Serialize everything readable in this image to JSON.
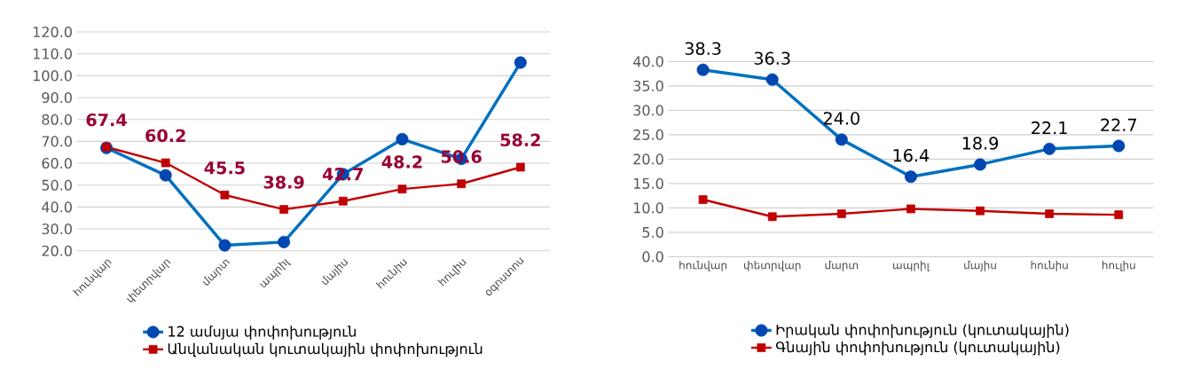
{
  "chart_data": [
    {
      "type": "line",
      "categories": [
        "հունվար",
        "փետրվար",
        "մարտ",
        "ապրիլ",
        "մայիս",
        "հունիս",
        "հուլիս",
        "օգոստոս"
      ],
      "ylim": [
        20,
        120
      ],
      "yticks": [
        {
          "value": 20,
          "label": "20.0"
        },
        {
          "value": 30,
          "label": "30.0"
        },
        {
          "value": 40,
          "label": "40.0"
        },
        {
          "value": 50,
          "label": "50.0"
        },
        {
          "value": 60,
          "label": "60.0"
        },
        {
          "value": 70,
          "label": "70.0"
        },
        {
          "value": 80,
          "label": "80.0"
        },
        {
          "value": 90,
          "label": "90.0"
        },
        {
          "value": 100,
          "label": "100.0"
        },
        {
          "value": 110,
          "label": "110.0"
        },
        {
          "value": 120,
          "label": "120.0"
        }
      ],
      "grid": "y",
      "legend": "bottom",
      "series": [
        {
          "name": "12 ամսյա փոփոխություն",
          "color": "#0070c0",
          "marker": "circle",
          "values": [
            67.0,
            54.5,
            22.5,
            24.0,
            55.0,
            71.0,
            62.0,
            106.0
          ]
        },
        {
          "name": "Անվանական կուտակային փոփոխություն",
          "color": "#c00000",
          "marker": "square",
          "values": [
            67.4,
            60.2,
            45.5,
            38.9,
            42.7,
            48.2,
            50.6,
            58.2
          ],
          "value_labels": [
            "67.4",
            "60.2",
            "45.5",
            "38.9",
            "42.7",
            "48.2",
            "50.6",
            "58.2"
          ]
        }
      ]
    },
    {
      "type": "line",
      "categories": [
        "հունվար",
        "փետրվար",
        "մարտ",
        "ապրիլ",
        "մայիս",
        "հունիս",
        "հուլիս"
      ],
      "ylim": [
        0,
        40
      ],
      "yticks": [
        {
          "value": 0,
          "label": "0.0"
        },
        {
          "value": 5,
          "label": "5.0"
        },
        {
          "value": 10,
          "label": "10.0"
        },
        {
          "value": 15,
          "label": "15.0"
        },
        {
          "value": 20,
          "label": "20.0"
        },
        {
          "value": 25,
          "label": "25.0"
        },
        {
          "value": 30,
          "label": "30.0"
        },
        {
          "value": 35,
          "label": "35.0"
        },
        {
          "value": 40,
          "label": "40.0"
        }
      ],
      "grid": "y",
      "legend": "bottom",
      "series": [
        {
          "name": "Իրական փոփոխություն (կուտակային)",
          "color": "#0070c0",
          "marker": "circle",
          "values": [
            38.3,
            36.3,
            24.0,
            16.4,
            18.9,
            22.1,
            22.7
          ],
          "value_labels": [
            "38.3",
            "36.3",
            "24.0",
            "16.4",
            "18.9",
            "22.1",
            "22.7"
          ]
        },
        {
          "name": "Գնային փոփոխություն (կուտակային)",
          "color": "#c00000",
          "marker": "square",
          "values": [
            11.7,
            8.2,
            8.8,
            9.8,
            9.4,
            8.8,
            8.6
          ]
        }
      ]
    }
  ]
}
